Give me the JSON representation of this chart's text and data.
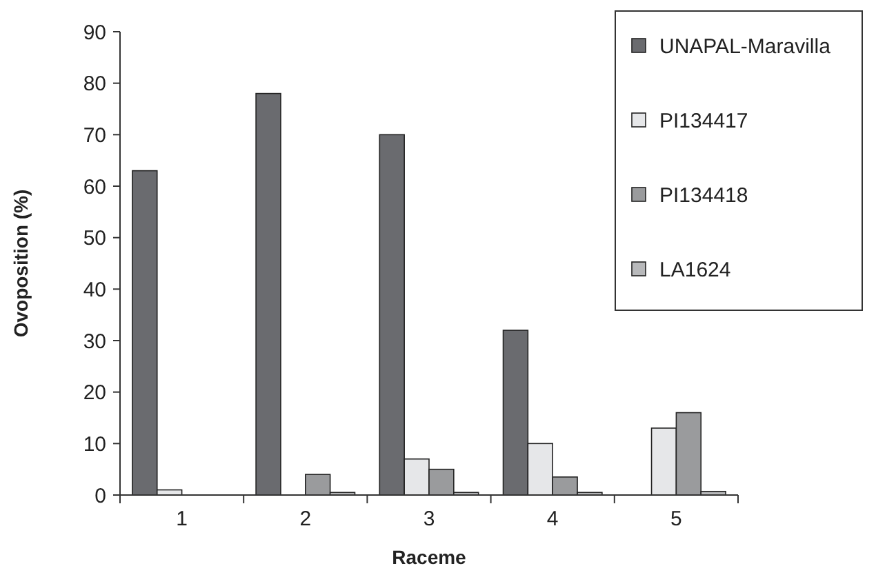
{
  "chart_data": {
    "type": "bar",
    "xlabel": "Raceme",
    "ylabel": "Ovoposition (%)",
    "categories": [
      "1",
      "2",
      "3",
      "4",
      "5"
    ],
    "series": [
      {
        "name": "UNAPAL-Maravilla",
        "color": "#6a6b6f",
        "values": [
          63,
          78,
          70,
          32,
          0
        ]
      },
      {
        "name": "PI134417",
        "color": "#e6e7e9",
        "values": [
          1,
          0,
          7,
          10,
          13
        ]
      },
      {
        "name": "PI134418",
        "color": "#9a9b9d",
        "values": [
          0,
          4,
          5,
          3.5,
          16
        ]
      },
      {
        "name": "LA1624",
        "color": "#b8b9bb",
        "values": [
          0,
          0.5,
          0.5,
          0.5,
          0.7
        ]
      }
    ],
    "ylim": [
      0,
      90
    ],
    "yticks": [
      0,
      10,
      20,
      30,
      40,
      50,
      60,
      70,
      80,
      90
    ],
    "legend": "top right"
  }
}
